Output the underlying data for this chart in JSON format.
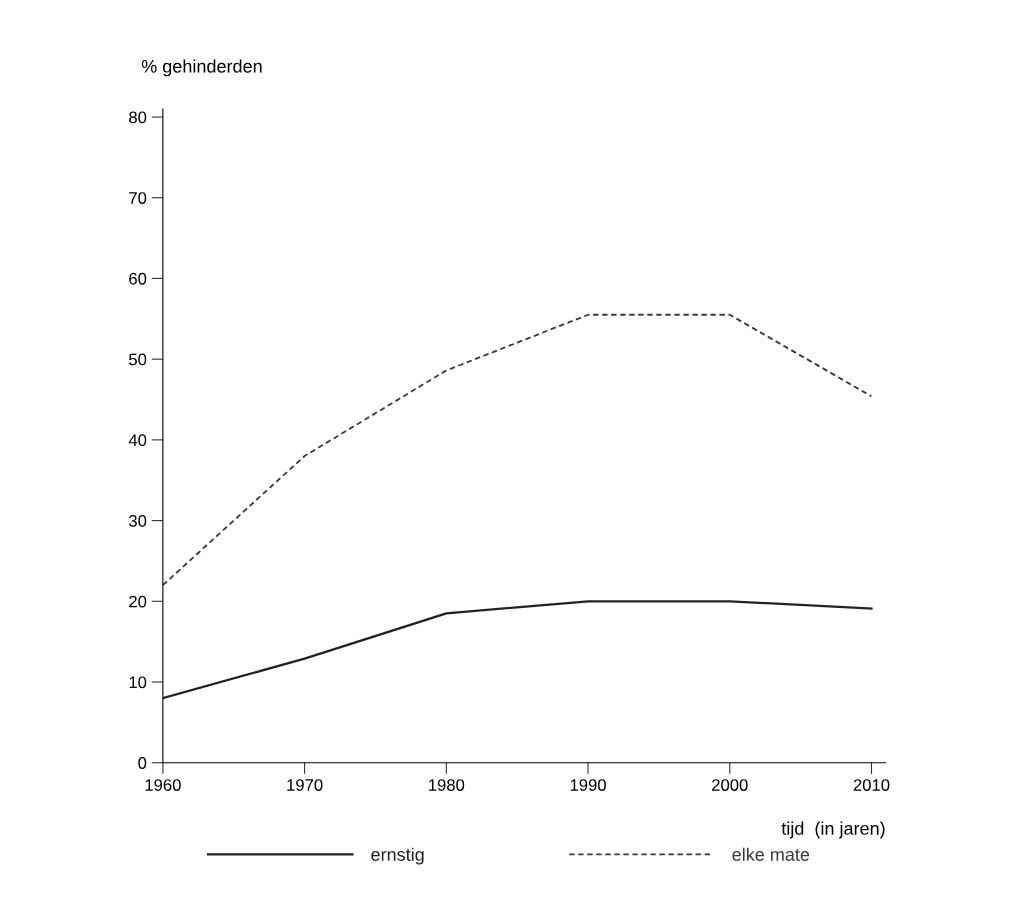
{
  "chart_data": {
    "type": "line",
    "x": [
      1960,
      1970,
      1980,
      1990,
      2000,
      2010
    ],
    "series": [
      {
        "name": "ernstig",
        "color": "#222222",
        "line_style": "solid",
        "values": [
          8,
          12.9,
          18.5,
          20,
          20,
          19.1
        ]
      },
      {
        "name": "elke mate",
        "color": "#3a3a3a",
        "line_style": "dashed",
        "values": [
          22,
          38,
          48.6,
          55.5,
          55.5,
          45.4
        ]
      }
    ],
    "ylabel": "% gehinderden",
    "xlabel": "tijd  (in jaren)",
    "xlim": [
      1960,
      2011
    ],
    "xticks": [
      1960,
      1970,
      1980,
      1990,
      2000,
      2010
    ],
    "ylim": [
      0,
      81
    ],
    "yticks": [
      0,
      10,
      20,
      30,
      40,
      50,
      60,
      70,
      80
    ],
    "grid": false,
    "legend": "bottom",
    "marker": "none"
  }
}
